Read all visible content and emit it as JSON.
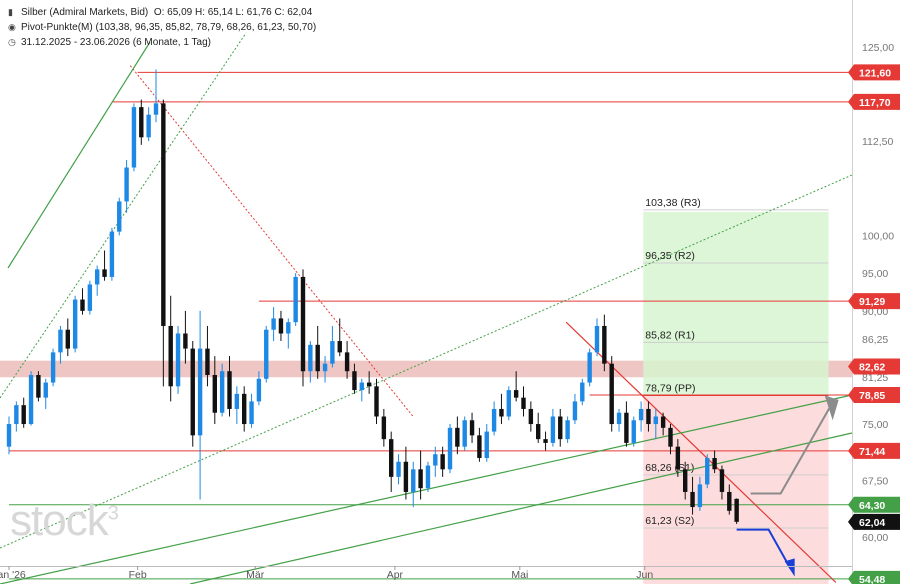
{
  "legend": {
    "instrument": "Silber (Admiral Markets, Bid)",
    "ohlc": "O: 65,09  H: 65,14  L: 61,76  C: 62,04",
    "pivot": "Pivot-Punkte(M) (103,38, 96,35, 85,82, 78,79, 68,26, 61,23, 50,70)",
    "range": "31.12.2025 - 23.06.2026  (6 Monate, 1 Tag)",
    "icons": [
      "candles-icon",
      "target-icon",
      "clock-icon"
    ]
  },
  "watermark": {
    "text": "stock",
    "sup": "3"
  },
  "colors": {
    "up": "#1e88e5",
    "down": "#111111",
    "red": "#e53935",
    "green": "#43a047",
    "zone": "#e8b4b0",
    "green_box": "#d6f5d0",
    "red_box": "#fbd6d6",
    "arrow_up": "#8c8c8c",
    "arrow_down": "#1a3fd6",
    "badge_dark": "#111111"
  },
  "chart_data": {
    "type": "candlestick",
    "title": "",
    "xlabel": "",
    "ylabel": "",
    "ylim": [
      53.8,
      131.2
    ],
    "x_tick_labels": [
      "Jan '26",
      "Feb",
      "Mär",
      "Apr",
      "Mai",
      "Jun"
    ],
    "y_tick_labels": [
      "125,00",
      "112,50",
      "100,00",
      "95,00",
      "90,00",
      "86,25",
      "81,25",
      "75,00",
      "67,50",
      "60,00",
      "55,00"
    ],
    "grid": false,
    "levels": [
      {
        "label": "121,60",
        "value": 121.6
      },
      {
        "label": "117,70",
        "value": 117.7
      },
      {
        "label": "91,29",
        "value": 91.29
      },
      {
        "label": "82,62",
        "value": 82.62
      },
      {
        "label": "78,85",
        "value": 78.85
      },
      {
        "label": "71,44",
        "value": 71.44
      },
      {
        "label": "64,30",
        "value": 64.3
      },
      {
        "label": "62,04",
        "value": 62.04
      },
      {
        "label": "54,48",
        "value": 54.48
      }
    ],
    "pivots": [
      {
        "label": "103,38 (R3)",
        "value": 103.38
      },
      {
        "label": "96,35 (R2)",
        "value": 96.35
      },
      {
        "label": "85,82 (R1)",
        "value": 85.82
      },
      {
        "label": "78,79 (PP)",
        "value": 78.79
      },
      {
        "label": "68,26 (S1)",
        "value": 68.26
      },
      {
        "label": "61,23 (S2)",
        "value": 61.23
      }
    ],
    "zone": [
      81.2,
      83.4
    ],
    "candles": [
      [
        72.0,
        76.0,
        71.0,
        75.0
      ],
      [
        75.0,
        78.0,
        74.0,
        77.5
      ],
      [
        77.5,
        78.5,
        74.5,
        75.0
      ],
      [
        75.0,
        82.0,
        74.8,
        81.5
      ],
      [
        81.5,
        82.0,
        78.0,
        78.5
      ],
      [
        78.5,
        81.0,
        77.0,
        80.5
      ],
      [
        80.5,
        85.0,
        80.0,
        84.5
      ],
      [
        84.5,
        88.0,
        83.0,
        87.5
      ],
      [
        87.5,
        89.0,
        84.0,
        85.0
      ],
      [
        85.0,
        92.0,
        84.5,
        91.5
      ],
      [
        91.5,
        93.0,
        89.5,
        90.0
      ],
      [
        90.0,
        94.0,
        89.5,
        93.5
      ],
      [
        93.5,
        96.0,
        92.0,
        95.5
      ],
      [
        95.5,
        98.0,
        94.0,
        94.5
      ],
      [
        94.5,
        101.0,
        94.0,
        100.5
      ],
      [
        100.5,
        105.0,
        100.0,
        104.5
      ],
      [
        104.5,
        110.0,
        103.0,
        109.0
      ],
      [
        109.0,
        117.5,
        108.5,
        117.0
      ],
      [
        117.0,
        118.0,
        112.0,
        113.0
      ],
      [
        113.0,
        117.0,
        112.5,
        116.0
      ],
      [
        116.0,
        122.0,
        115.0,
        117.5
      ],
      [
        117.5,
        118.0,
        80.0,
        88.0
      ],
      [
        88.0,
        92.0,
        78.0,
        80.0
      ],
      [
        80.0,
        88.0,
        79.0,
        87.0
      ],
      [
        87.0,
        90.0,
        83.0,
        85.0
      ],
      [
        85.0,
        86.0,
        72.0,
        73.5
      ],
      [
        73.5,
        90.0,
        65.0,
        85.0
      ],
      [
        85.0,
        88.0,
        80.0,
        81.5
      ],
      [
        81.5,
        84.0,
        75.0,
        76.5
      ],
      [
        76.5,
        83.0,
        76.0,
        82.0
      ],
      [
        82.0,
        84.0,
        76.0,
        77.0
      ],
      [
        77.0,
        80.0,
        75.0,
        79.0
      ],
      [
        79.0,
        80.0,
        74.0,
        75.0
      ],
      [
        75.0,
        79.0,
        74.5,
        78.0
      ],
      [
        78.0,
        82.0,
        77.5,
        81.0
      ],
      [
        81.0,
        88.0,
        80.5,
        87.5
      ],
      [
        87.5,
        90.5,
        86.0,
        89.0
      ],
      [
        89.0,
        90.0,
        86.0,
        87.0
      ],
      [
        87.0,
        89.0,
        85.0,
        88.5
      ],
      [
        88.5,
        95.0,
        88.0,
        94.5
      ],
      [
        94.5,
        95.5,
        80.0,
        82.0
      ],
      [
        82.0,
        86.0,
        80.5,
        85.5
      ],
      [
        85.5,
        88.0,
        81.0,
        82.0
      ],
      [
        82.0,
        84.0,
        80.5,
        83.0
      ],
      [
        83.0,
        88.0,
        82.5,
        86.0
      ],
      [
        86.0,
        89.0,
        84.0,
        84.5
      ],
      [
        84.5,
        86.0,
        81.0,
        82.0
      ],
      [
        82.0,
        83.0,
        79.0,
        79.5
      ],
      [
        79.5,
        81.0,
        78.0,
        80.5
      ],
      [
        80.5,
        82.0,
        79.0,
        80.0
      ],
      [
        80.0,
        81.0,
        75.0,
        76.0
      ],
      [
        76.0,
        77.0,
        72.0,
        73.0
      ],
      [
        73.0,
        74.0,
        66.0,
        68.0
      ],
      [
        68.0,
        71.0,
        67.0,
        70.0
      ],
      [
        70.0,
        72.0,
        65.0,
        66.0
      ],
      [
        66.0,
        70.0,
        64.0,
        69.0
      ],
      [
        69.0,
        71.5,
        65.0,
        66.5
      ],
      [
        66.5,
        70.0,
        66.0,
        69.5
      ],
      [
        69.5,
        72.0,
        68.0,
        71.0
      ],
      [
        71.0,
        72.0,
        68.0,
        69.0
      ],
      [
        69.0,
        75.0,
        68.5,
        74.5
      ],
      [
        74.5,
        76.0,
        71.0,
        72.0
      ],
      [
        72.0,
        76.0,
        71.5,
        75.5
      ],
      [
        75.5,
        76.5,
        72.5,
        73.5
      ],
      [
        73.5,
        74.5,
        70.0,
        70.5
      ],
      [
        70.5,
        75.0,
        70.0,
        74.0
      ],
      [
        74.0,
        78.0,
        73.5,
        77.0
      ],
      [
        77.0,
        79.0,
        75.0,
        76.0
      ],
      [
        76.0,
        80.0,
        75.5,
        79.5
      ],
      [
        79.5,
        82.0,
        78.0,
        78.5
      ],
      [
        78.5,
        80.0,
        76.0,
        77.0
      ],
      [
        77.0,
        78.0,
        74.0,
        75.0
      ],
      [
        75.0,
        76.5,
        72.5,
        73.0
      ],
      [
        73.0,
        74.0,
        71.5,
        72.5
      ],
      [
        72.5,
        77.0,
        72.0,
        76.0
      ],
      [
        76.0,
        77.0,
        72.0,
        73.0
      ],
      [
        73.0,
        76.0,
        72.5,
        75.5
      ],
      [
        75.5,
        79.0,
        75.0,
        78.0
      ],
      [
        78.0,
        81.0,
        77.5,
        80.5
      ],
      [
        80.5,
        85.0,
        80.0,
        84.5
      ],
      [
        84.5,
        89.0,
        84.0,
        88.0
      ],
      [
        88.0,
        89.5,
        82.0,
        83.0
      ],
      [
        83.0,
        84.0,
        74.0,
        75.0
      ],
      [
        75.0,
        77.0,
        74.0,
        76.5
      ],
      [
        76.5,
        78.0,
        72.0,
        72.5
      ],
      [
        72.5,
        76.0,
        72.0,
        75.5
      ],
      [
        75.5,
        78.0,
        74.0,
        77.0
      ],
      [
        77.0,
        78.0,
        74.0,
        75.0
      ],
      [
        75.0,
        77.0,
        73.0,
        76.0
      ],
      [
        76.0,
        76.5,
        73.5,
        74.5
      ],
      [
        74.5,
        75.0,
        71.0,
        72.0
      ],
      [
        72.0,
        73.0,
        68.0,
        69.0
      ],
      [
        69.0,
        70.0,
        65.0,
        66.0
      ],
      [
        66.0,
        68.0,
        63.0,
        64.0
      ],
      [
        64.0,
        68.0,
        63.5,
        67.0
      ],
      [
        67.0,
        71.0,
        66.5,
        70.5
      ],
      [
        70.5,
        71.5,
        68.5,
        69.0
      ],
      [
        69.0,
        69.5,
        65.0,
        66.0
      ],
      [
        66.0,
        67.0,
        63.0,
        63.5
      ],
      [
        65.09,
        65.14,
        61.76,
        62.04
      ]
    ]
  }
}
